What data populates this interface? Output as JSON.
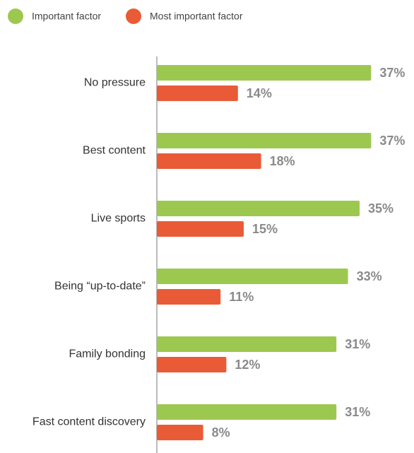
{
  "chart_data": {
    "type": "bar",
    "orientation": "horizontal",
    "categories": [
      "No pressure",
      "Best content",
      "Live sports",
      "Being “up-to-date”",
      "Family bonding",
      "Fast content discovery"
    ],
    "series": [
      {
        "name": "Important factor",
        "color": "#9dc850",
        "values": [
          37,
          37,
          35,
          33,
          31,
          31
        ],
        "value_labels": [
          "37%",
          "37%",
          "35%",
          "33%",
          "31%",
          "31%"
        ]
      },
      {
        "name": "Most important factor",
        "color": "#e95b37",
        "values": [
          14,
          18,
          15,
          11,
          12,
          8
        ],
        "value_labels": [
          "14%",
          "18%",
          "15%",
          "11%",
          "12%",
          "8%"
        ]
      }
    ],
    "legend": "top-left"
  }
}
